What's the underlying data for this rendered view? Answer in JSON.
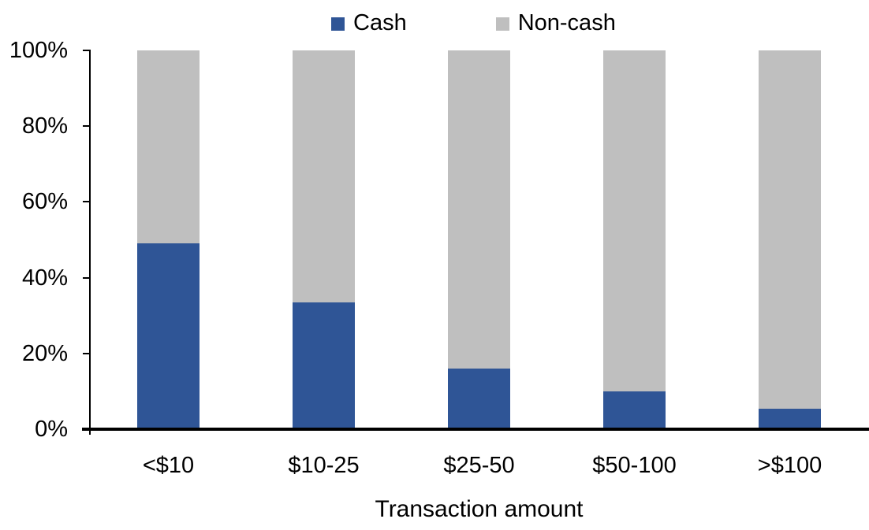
{
  "chart_data": {
    "type": "bar",
    "variant": "stacked-100-percent",
    "title": "",
    "xlabel": "Transaction amount",
    "ylabel": "",
    "categories": [
      "<$10",
      "$10-25",
      "$25-50",
      "$50-100",
      ">$100"
    ],
    "series": [
      {
        "name": "Cash",
        "color": "#2F5596",
        "values": [
          49,
          33.5,
          16,
          10,
          5.5
        ]
      },
      {
        "name": "Non-cash",
        "color": "#BFBFBF",
        "values": [
          51,
          66.5,
          84,
          90,
          94.5
        ]
      }
    ],
    "ylim": [
      0,
      100
    ],
    "ytick_values": [
      0,
      20,
      40,
      60,
      80,
      100
    ],
    "ytick_labels": [
      "0%",
      "20%",
      "40%",
      "60%",
      "80%",
      "100%"
    ],
    "legend_position": "top",
    "grid": false,
    "axis_color": "#000000",
    "text_color": "#000000",
    "background": "#FFFFFF"
  }
}
